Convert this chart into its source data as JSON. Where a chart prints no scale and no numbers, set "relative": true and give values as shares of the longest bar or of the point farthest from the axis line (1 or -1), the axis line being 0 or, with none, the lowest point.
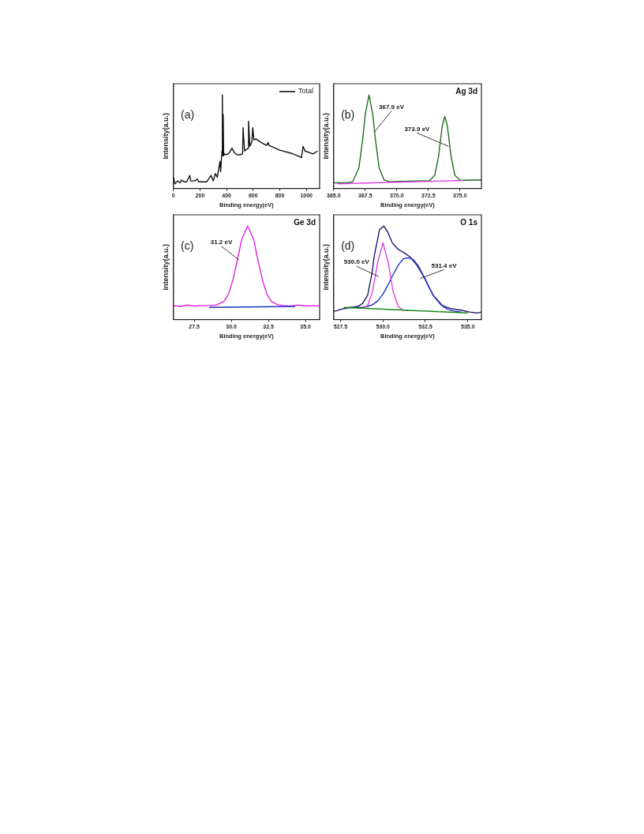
{
  "chart_data": [
    {
      "type": "line",
      "xlabel": "Binding energy(eV)",
      "ylabel": "Intensity(a.u.)",
      "relative": true,
      "xlim": [
        0,
        1100
      ],
      "xticks": [
        0,
        200,
        400,
        600,
        800,
        1000
      ],
      "grid": false,
      "marker": "none",
      "legend": "top right",
      "annotations": [
        "(a)"
      ],
      "series": [
        {
          "name": "Total",
          "color": "#111111",
          "x": [
            0,
            10,
            30,
            50,
            60,
            80,
            100,
            123,
            130,
            160,
            180,
            190,
            250,
            282,
            300,
            315,
            330,
            350,
            355,
            365,
            368,
            371,
            374,
            378,
            385,
            400,
            420,
            440,
            460,
            480,
            500,
            520,
            524,
            535,
            560,
            565,
            575,
            590,
            597,
            605,
            620,
            650,
            700,
            712,
            720,
            800,
            900,
            950,
            964,
            975,
            990,
            1050,
            1085
          ],
          "values": [
            0.12,
            0.05,
            0.08,
            0.06,
            0.09,
            0.07,
            0.07,
            0.14,
            0.08,
            0.08,
            0.1,
            0.07,
            0.07,
            0.14,
            0.08,
            0.16,
            0.12,
            0.29,
            0.18,
            0.4,
            1.0,
            0.35,
            0.79,
            0.35,
            0.37,
            0.36,
            0.38,
            0.43,
            0.38,
            0.36,
            0.36,
            0.37,
            0.65,
            0.4,
            0.43,
            0.72,
            0.45,
            0.5,
            0.65,
            0.52,
            0.53,
            0.5,
            0.46,
            0.49,
            0.46,
            0.41,
            0.37,
            0.34,
            0.33,
            0.45,
            0.4,
            0.37,
            0.4
          ]
        }
      ]
    },
    {
      "type": "line",
      "xlabel": "Binding energy(eV)",
      "ylabel": "Intensity(a.u.)",
      "relative": true,
      "xlim": [
        365,
        376.7
      ],
      "xticks": [
        {
          "value": 365,
          "label": "365.0"
        },
        {
          "value": 367.5,
          "label": "367.5"
        },
        {
          "value": 370,
          "label": "370.0"
        },
        {
          "value": 372.5,
          "label": "372.5"
        },
        {
          "value": 375,
          "label": "375.0"
        }
      ],
      "grid": false,
      "marker": "none",
      "annotations": [
        "(b)",
        "Ag 3d",
        {
          "text": "367.9 eV",
          "x": 368.2,
          "y": 0.6
        },
        {
          "text": "373.9 eV",
          "x": 374.1,
          "y": 0.45
        }
      ],
      "series": [
        {
          "color": "#e040e0",
          "x": [
            365.3,
            375.2
          ],
          "values": [
            0.05,
            0.085
          ]
        },
        {
          "color": "#1e6e1e",
          "x": [
            365,
            366,
            366.5,
            367,
            367.3,
            367.5,
            367.8,
            368.1,
            368.3,
            368.6,
            369,
            369.5,
            370,
            371,
            372,
            372.6,
            373,
            373.3,
            373.6,
            373.8,
            374,
            374.3,
            374.6,
            375,
            375.5,
            376,
            376.7
          ],
          "values": [
            0.06,
            0.06,
            0.07,
            0.22,
            0.53,
            0.79,
            1.0,
            0.79,
            0.53,
            0.22,
            0.09,
            0.07,
            0.075,
            0.078,
            0.081,
            0.083,
            0.14,
            0.34,
            0.67,
            0.77,
            0.67,
            0.34,
            0.14,
            0.089,
            0.088,
            0.09,
            0.09
          ]
        }
      ]
    },
    {
      "type": "line",
      "xlabel": "Binding energy(eV)",
      "ylabel": "Intensity(a.u.)",
      "relative": true,
      "xlim": [
        26.1,
        35.95
      ],
      "xticks": [
        {
          "value": 27.5,
          "label": "27.5"
        },
        {
          "value": 30,
          "label": "30.0"
        },
        {
          "value": 32.5,
          "label": "32.5"
        },
        {
          "value": 35,
          "label": "35.0"
        }
      ],
      "grid": false,
      "marker": "none",
      "annotations": [
        "(c)",
        "Ge 3d",
        {
          "text": "31.2 eV",
          "x": 30.5,
          "y": 0.64
        }
      ],
      "series": [
        {
          "color": "#2030c0",
          "x": [
            28.5,
            34.3
          ],
          "values": [
            0.13,
            0.14
          ]
        },
        {
          "color": "#e020e0",
          "x": [
            26.1,
            26.6,
            27,
            27.5,
            28,
            28.5,
            29,
            29.5,
            29.8,
            30.1,
            30.4,
            30.7,
            31.1,
            31.5,
            31.8,
            32.1,
            32.4,
            32.7,
            33.1,
            33.5,
            34,
            34.5,
            35,
            35.5,
            35.95
          ],
          "values": [
            0.15,
            0.14,
            0.155,
            0.145,
            0.15,
            0.15,
            0.155,
            0.195,
            0.27,
            0.42,
            0.63,
            0.86,
            1.0,
            0.86,
            0.63,
            0.42,
            0.27,
            0.195,
            0.16,
            0.15,
            0.145,
            0.155,
            0.145,
            0.15,
            0.145
          ]
        }
      ]
    },
    {
      "type": "line",
      "xlabel": "Binding energy(eV)",
      "ylabel": "Intensity(a.u.)",
      "relative": true,
      "xlim": [
        527.1,
        535.8
      ],
      "xticks": [
        {
          "value": 527.5,
          "label": "527.5"
        },
        {
          "value": 530,
          "label": "530.0"
        },
        {
          "value": 532.5,
          "label": "532.5"
        },
        {
          "value": 535,
          "label": "535.0"
        }
      ],
      "grid": false,
      "marker": "none",
      "annotations": [
        "(d)",
        "O 1s",
        {
          "text": "530.0 eV",
          "x": 529.75,
          "y": 0.46
        },
        {
          "text": "531.4 eV",
          "x": 532.2,
          "y": 0.44
        }
      ],
      "series": [
        {
          "color": "#1a8a1a",
          "x": [
            527.7,
            535
          ],
          "values": [
            0.13,
            0.07
          ]
        },
        {
          "color": "#e040e0",
          "x": [
            528.5,
            528.8,
            529.1,
            529.4,
            529.7,
            530,
            530.3,
            530.6,
            530.9,
            531.2,
            531.5
          ],
          "values": [
            0.12,
            0.12,
            0.15,
            0.31,
            0.62,
            0.82,
            0.62,
            0.3,
            0.14,
            0.1,
            0.1
          ]
        },
        {
          "color": "#2030c0",
          "x": [
            528,
            528.5,
            528.8,
            529.1,
            529.4,
            529.7,
            530,
            530.3,
            530.6,
            530.9,
            531.2,
            531.5,
            531.8,
            532.1,
            532.4,
            532.7,
            533,
            533.4,
            533.8,
            534.2,
            534.6
          ],
          "values": [
            0.13,
            0.13,
            0.13,
            0.14,
            0.16,
            0.2,
            0.27,
            0.37,
            0.48,
            0.58,
            0.65,
            0.66,
            0.64,
            0.57,
            0.46,
            0.35,
            0.25,
            0.16,
            0.11,
            0.09,
            0.08
          ]
        },
        {
          "color": "#1a1a6e",
          "x": [
            527.1,
            527.3,
            527.5,
            528,
            528.5,
            528.8,
            529.1,
            529.35,
            529.5,
            529.8,
            530.05,
            530.3,
            530.55,
            530.9,
            531.2,
            531.6,
            532,
            532.5,
            532.95,
            533.5,
            533.95,
            534.6,
            535.1,
            535.55,
            535.8
          ],
          "values": [
            0.09,
            0.095,
            0.11,
            0.125,
            0.14,
            0.17,
            0.26,
            0.49,
            0.69,
            0.96,
            1.0,
            0.93,
            0.82,
            0.75,
            0.72,
            0.67,
            0.58,
            0.43,
            0.26,
            0.15,
            0.12,
            0.1,
            0.08,
            0.07,
            0.08
          ]
        }
      ]
    }
  ]
}
